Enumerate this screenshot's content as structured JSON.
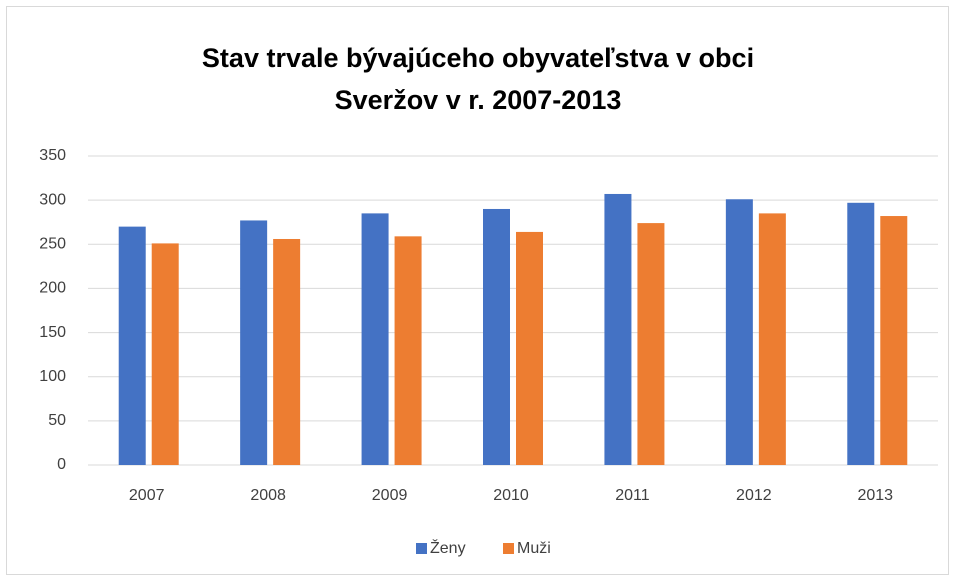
{
  "chart_data": {
    "type": "bar",
    "title": [
      "Stav trvale bývajúceho obyvateľstva v obci",
      "Sveržov v r. 2007-2013"
    ],
    "categories": [
      "2007",
      "2008",
      "2009",
      "2010",
      "2011",
      "2012",
      "2013"
    ],
    "series": [
      {
        "name": "Ženy",
        "color": "#4472c4",
        "values": [
          270,
          277,
          285,
          290,
          307,
          301,
          297
        ]
      },
      {
        "name": "Muži",
        "color": "#ed7d31",
        "values": [
          251,
          256,
          259,
          264,
          274,
          285,
          282
        ]
      }
    ],
    "ylim": [
      0,
      350
    ],
    "yticks": [
      0,
      50,
      100,
      150,
      200,
      250,
      300,
      350
    ],
    "grid": true,
    "legend": "bottom"
  }
}
